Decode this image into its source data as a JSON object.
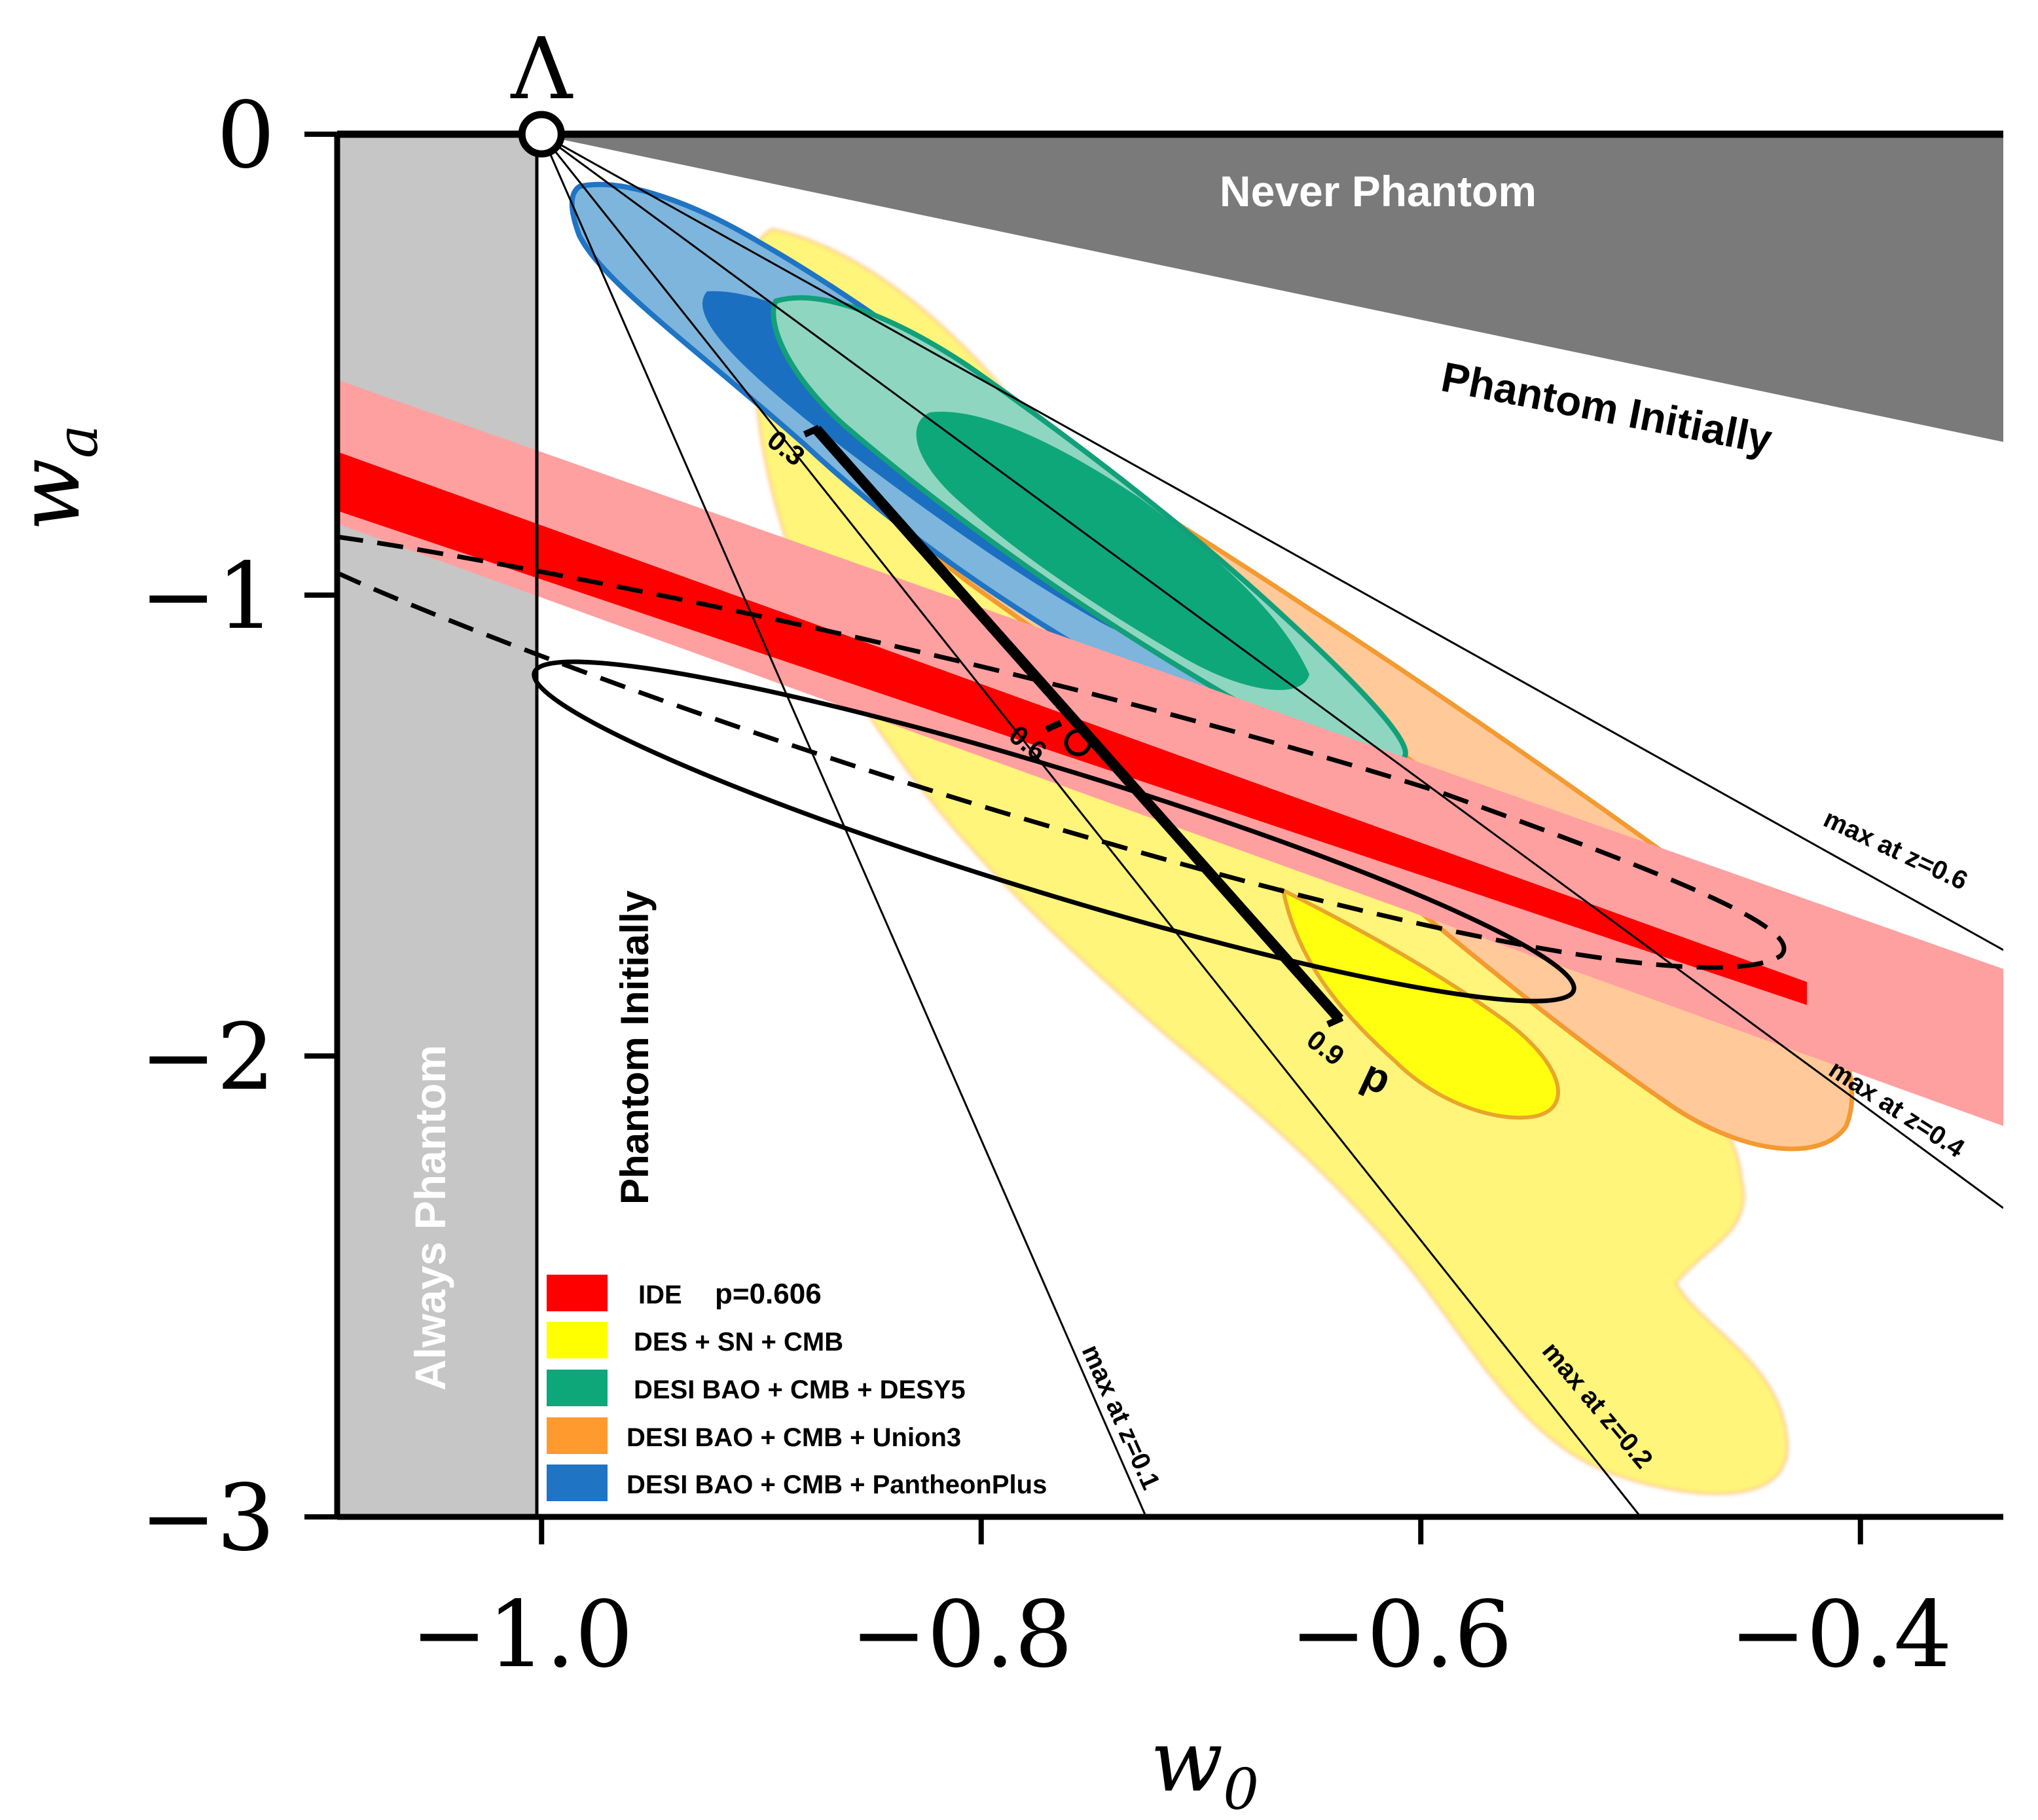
{
  "chart_data": {
    "type": "scatter",
    "title": "",
    "xlabel": "w_0",
    "ylabel": "w_a",
    "xlim": [
      -1.093,
      -0.335
    ],
    "ylim": [
      -3.0,
      0.0
    ],
    "x_ticks": [
      -1.0,
      -0.8,
      -0.6,
      -0.4
    ],
    "x_tick_labels": [
      "−1.0",
      "−0.8",
      "−0.6",
      "−0.4"
    ],
    "y_ticks": [
      0,
      -1,
      -2,
      -3
    ],
    "y_tick_labels": [
      "0",
      "−1",
      "−2",
      "−3"
    ],
    "lambda_point": {
      "label": "Λ",
      "w0": -1.0,
      "wa": 0.0
    },
    "regions": {
      "always_phantom": "Always Phantom",
      "never_phantom": "Never Phantom",
      "phantom_initially_top": "Phantom Initially",
      "phantom_initially_left": "Phantom Initially"
    },
    "max_lines": [
      {
        "label": "max at z=0.1",
        "end": [
          -0.725,
          -3.0
        ]
      },
      {
        "label": "max at z=0.2",
        "end": [
          -0.5,
          -3.0
        ]
      },
      {
        "label": "max at z=0.4",
        "end": [
          -0.335,
          -2.33
        ]
      },
      {
        "label": "max at z=0.6",
        "end": [
          -0.335,
          -1.77
        ]
      }
    ],
    "p_track": {
      "label": "p",
      "points": [
        [
          -0.875,
          -0.64
        ],
        [
          -0.637,
          -1.92
        ]
      ],
      "ticks": [
        {
          "label": "0.3",
          "w0": -0.875,
          "wa": -0.64
        },
        {
          "label": "0.6",
          "w0": -0.765,
          "wa": -1.28
        },
        {
          "label": "0.9",
          "w0": -0.637,
          "wa": -1.92
        }
      ],
      "marker": {
        "w0": -0.756,
        "wa": -1.32
      }
    },
    "series": [
      {
        "name": "IDE",
        "annotation": "p=0.606",
        "color": "#ff0000",
        "inner_color": "#ff0000",
        "outer_color": "#ffa0a0"
      },
      {
        "name": "DES + SN + CMB",
        "color": "#ffff00"
      },
      {
        "name": "DESI BAO + CMB + DESY5",
        "color": "#0ea77a"
      },
      {
        "name": "DESI BAO + CMB + Union3",
        "color": "#ff9a2e"
      },
      {
        "name": "DESI BAO + CMB + PantheonPlus",
        "color": "#1f74c4"
      }
    ]
  }
}
